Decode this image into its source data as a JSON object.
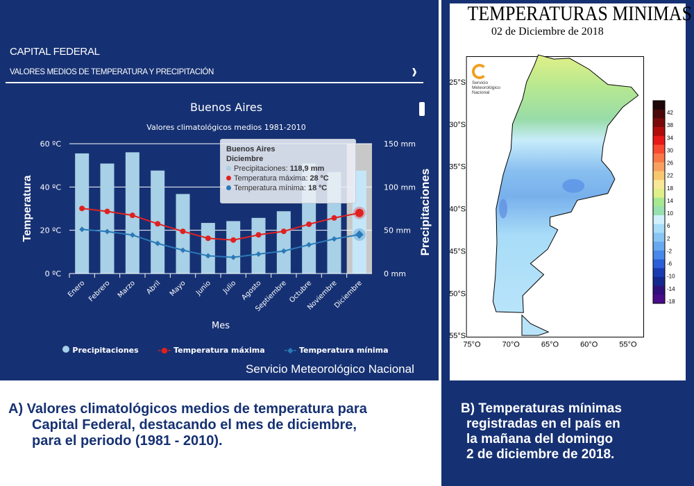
{
  "panel_a": {
    "region": "CAPITAL FEDERAL",
    "section": "VALORES MEDIOS DE TEMPERATURA Y PRECIPITACIÓN",
    "dropdown_icon": "chevron-down-icon",
    "menu_icon": "hamburger-menu-icon",
    "credit": "Servicio Meteorológico Nacional",
    "caption": [
      "A) Valores climatológicos medios de temperatura para",
      "Capital Federal, destacando el mes de diciembre,",
      "para el periodo (1981 - 2010)."
    ]
  },
  "tooltip": {
    "city": "Buenos Aires",
    "month": "Diciembre",
    "precip_label": "Precipitaciones:",
    "precip_value": "118,9 mm",
    "tmax_label": "Temperatura máxima:",
    "tmax_value": "28 ºC",
    "tmin_label": "Temperatura mínima:",
    "tmin_value": "18 ºC"
  },
  "chart_data": [
    {
      "type": "bar+line",
      "title": "Buenos Aires",
      "subtitle": "Valores climatológicos medios 1981-2010",
      "xlabel": "Mes",
      "ylabel": "Temperatura",
      "y2label": "Precipitaciones",
      "categories": [
        "Enero",
        "Febrero",
        "Marzo",
        "Abril",
        "Mayo",
        "Junio",
        "Julio",
        "Agosto",
        "Septiembre",
        "Octubre",
        "Noviembre",
        "Diciembre"
      ],
      "yticks": [
        "0 ºC",
        "20 ºC",
        "40 ºC",
        "60 ºC"
      ],
      "y2ticks": [
        "0 mm",
        "50 mm",
        "100 mm",
        "150 mm"
      ],
      "ylim": [
        0,
        60
      ],
      "y2lim": [
        0,
        150
      ],
      "grid": true,
      "legend_position": "bottom",
      "highlighted_category": "Diciembre",
      "series": [
        {
          "name": "Precipitaciones",
          "kind": "bar",
          "axis": "y2",
          "color": "#a8d0e6",
          "values": [
            138.8,
            127.1,
            140.1,
            119.0,
            91.9,
            58.5,
            60.6,
            64.3,
            72.0,
            127.2,
            117.3,
            118.9
          ]
        },
        {
          "name": "Temperatura máxima",
          "kind": "line",
          "axis": "y",
          "color": "#e02020",
          "values": [
            30.1,
            28.7,
            26.9,
            23.0,
            19.5,
            16.3,
            15.5,
            17.9,
            19.5,
            22.8,
            25.7,
            28.0
          ]
        },
        {
          "name": "Temperatura mínima",
          "kind": "line",
          "axis": "y",
          "color": "#2a7ab8",
          "values": [
            20.4,
            19.4,
            17.8,
            13.9,
            10.8,
            8.2,
            7.5,
            9.0,
            10.4,
            13.3,
            16.0,
            18.0
          ]
        }
      ]
    },
    {
      "type": "heatmap",
      "title": "TEMPERATURAS MINIMAS",
      "subtitle": "02 de Diciembre de 2018",
      "xticks": [
        "75°O",
        "70°O",
        "65°O",
        "60°O",
        "55°O"
      ],
      "yticks": [
        "25°S",
        "30°S",
        "35°S",
        "40°S",
        "45°S",
        "50°S",
        "55°S"
      ],
      "colorbar_labels": [
        "42",
        "38",
        "34",
        "30",
        "26",
        "22",
        "18",
        "14",
        "10",
        "6",
        "2",
        "-2",
        "-6",
        "-10",
        "-14",
        "-18"
      ],
      "colorbar_colors": [
        "#1e0608",
        "#4a0808",
        "#7a0a0a",
        "#b00c0c",
        "#e81818",
        "#f84a30",
        "#f87848",
        "#f8a060",
        "#f8c870",
        "#f8e898",
        "#e0f088",
        "#a8e890",
        "#98e0b0",
        "#d0f0fc",
        "#a8dcf8",
        "#88c4f4",
        "#68a8ee",
        "#4888e8",
        "#2c60d8",
        "#1a3cb0",
        "#14288e",
        "#30107a",
        "#4a0c88"
      ],
      "logo_text": [
        "Servicio",
        "Meteorológico",
        "Nacional"
      ]
    }
  ],
  "panel_b": {
    "caption": [
      "B) Temperaturas mínimas",
      "registradas en el país en",
      "la mañana del domingo",
      "2 de diciembre de 2018."
    ]
  }
}
